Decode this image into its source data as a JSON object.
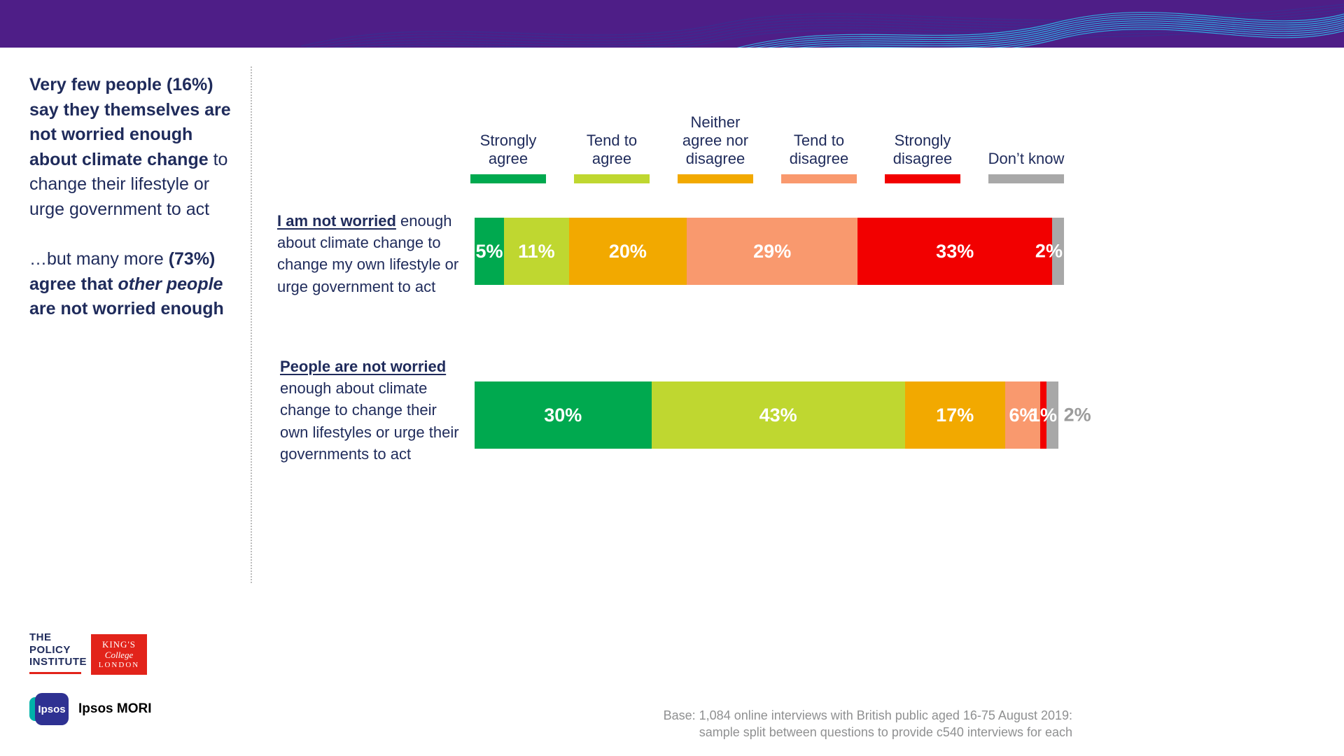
{
  "brand": {
    "banner_purple": "#4e1e87",
    "navy_text": "#1f2b5b",
    "wave_cyan": "#2fc2ee",
    "wave_blue": "#2b3a9a",
    "kcl_red": "#e2231a",
    "ipsos_blue": "#2e3192",
    "ipsos_teal": "#00b2a9",
    "base_note_gray": "#8f9091"
  },
  "sidebar": {
    "p1_bold": "Very few people (16%) say they themselves are not worried enough about climate change",
    "p1_regular": " to change their lifestyle or urge government to act",
    "p2_regular": "…but many more ",
    "p2_bold1": "(73%) agree that ",
    "p2_bold_italic": "other people",
    "p2_bold2": " are not worried enough"
  },
  "chart_data": {
    "type": "bar",
    "stacked": true,
    "orientation": "horizontal",
    "unit": "%",
    "xlim": [
      0,
      100
    ],
    "legend_position": "top",
    "grid": false,
    "categories": [
      {
        "lead": "I am not worried",
        "rest": " enough about climate change to change my own lifestyle or urge government to act"
      },
      {
        "lead": "People are not worried",
        "rest": " enough about climate change to change their own lifestyles or urge their governments to act"
      }
    ],
    "series": [
      {
        "name": "Strongly agree",
        "color": "#00a94f",
        "values": [
          5,
          30
        ]
      },
      {
        "name": "Tend to agree",
        "color": "#bfd730",
        "values": [
          11,
          43
        ]
      },
      {
        "name": "Neither agree nor disagree",
        "color": "#f2a900",
        "values": [
          20,
          17
        ]
      },
      {
        "name": "Tend to disagree",
        "color": "#f9996e",
        "values": [
          29,
          6
        ]
      },
      {
        "name": "Strongly disagree",
        "color": "#f20000",
        "values": [
          33,
          1
        ]
      },
      {
        "name": "Don’t know",
        "color": "#a8a8a8",
        "values": [
          2,
          2
        ]
      }
    ],
    "value_labels": [
      [
        {
          "text": "5%"
        },
        {
          "text": "11%"
        },
        {
          "text": "20%"
        },
        {
          "text": "29%"
        },
        {
          "text": "33%"
        },
        {
          "text": "2%",
          "anchor": "right"
        }
      ],
      [
        {
          "text": "30%"
        },
        {
          "text": "43%"
        },
        {
          "text": "17%"
        },
        {
          "text": "6%"
        },
        {
          "text": "1%"
        },
        {
          "text": "2%",
          "outside": true,
          "color": "#9b9b9b"
        }
      ]
    ]
  },
  "footer": {
    "base_line1": "Base: 1,084 online interviews with British public aged 16-75 August 2019:",
    "base_line2": "sample split between questions to provide c540 interviews for each"
  },
  "logos": {
    "policy_institute": {
      "line1": "THE",
      "line2": "POLICY",
      "line3": "INSTITUTE"
    },
    "kcl": {
      "line1": "KING'S",
      "line2": "College",
      "line3": "LONDON"
    },
    "ipsos": {
      "logo_text": "Ipsos",
      "label": "Ipsos MORI"
    }
  }
}
